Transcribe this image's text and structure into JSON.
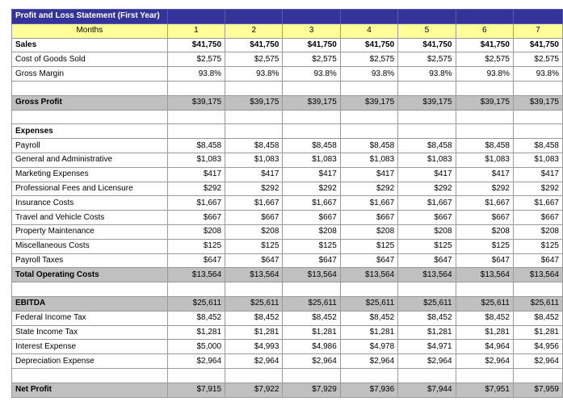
{
  "title": "Profit and Loss Statement (First Year)",
  "months_label": "Months",
  "months": [
    "1",
    "2",
    "3",
    "4",
    "5",
    "6",
    "7"
  ],
  "rows": [
    {
      "label": "Sales",
      "values": [
        "$41,750",
        "$41,750",
        "$41,750",
        "$41,750",
        "$41,750",
        "$41,750",
        "$41,750"
      ],
      "style": "boldall"
    },
    {
      "label": "Cost of Goods Sold",
      "values": [
        "$2,575",
        "$2,575",
        "$2,575",
        "$2,575",
        "$2,575",
        "$2,575",
        "$2,575"
      ],
      "style": ""
    },
    {
      "label": "Gross Margin",
      "values": [
        "93.8%",
        "93.8%",
        "93.8%",
        "93.8%",
        "93.8%",
        "93.8%",
        "93.8%"
      ],
      "style": ""
    },
    {
      "label": "",
      "values": [
        "",
        "",
        "",
        "",
        "",
        "",
        ""
      ],
      "style": "blank"
    },
    {
      "label": "Gross Profit",
      "values": [
        "$39,175",
        "$39,175",
        "$39,175",
        "$39,175",
        "$39,175",
        "$39,175",
        "$39,175"
      ],
      "style": "gray bold"
    },
    {
      "label": "",
      "values": [
        "",
        "",
        "",
        "",
        "",
        "",
        ""
      ],
      "style": "blank"
    },
    {
      "label": "Expenses",
      "values": [
        "",
        "",
        "",
        "",
        "",
        "",
        ""
      ],
      "style": "bold"
    },
    {
      "label": "Payroll",
      "values": [
        "$8,458",
        "$8,458",
        "$8,458",
        "$8,458",
        "$8,458",
        "$8,458",
        "$8,458"
      ],
      "style": ""
    },
    {
      "label": "General and Administrative",
      "values": [
        "$1,083",
        "$1,083",
        "$1,083",
        "$1,083",
        "$1,083",
        "$1,083",
        "$1,083"
      ],
      "style": ""
    },
    {
      "label": "Marketing Expenses",
      "values": [
        "$417",
        "$417",
        "$417",
        "$417",
        "$417",
        "$417",
        "$417"
      ],
      "style": ""
    },
    {
      "label": "Professional Fees and Licensure",
      "values": [
        "$292",
        "$292",
        "$292",
        "$292",
        "$292",
        "$292",
        "$292"
      ],
      "style": ""
    },
    {
      "label": "Insurance Costs",
      "values": [
        "$1,667",
        "$1,667",
        "$1,667",
        "$1,667",
        "$1,667",
        "$1,667",
        "$1,667"
      ],
      "style": ""
    },
    {
      "label": "Travel and Vehicle Costs",
      "values": [
        "$667",
        "$667",
        "$667",
        "$667",
        "$667",
        "$667",
        "$667"
      ],
      "style": ""
    },
    {
      "label": "Property Maintenance",
      "values": [
        "$208",
        "$208",
        "$208",
        "$208",
        "$208",
        "$208",
        "$208"
      ],
      "style": ""
    },
    {
      "label": "Miscellaneous Costs",
      "values": [
        "$125",
        "$125",
        "$125",
        "$125",
        "$125",
        "$125",
        "$125"
      ],
      "style": ""
    },
    {
      "label": "Payroll Taxes",
      "values": [
        "$647",
        "$647",
        "$647",
        "$647",
        "$647",
        "$647",
        "$647"
      ],
      "style": ""
    },
    {
      "label": "Total Operating Costs",
      "values": [
        "$13,564",
        "$13,564",
        "$13,564",
        "$13,564",
        "$13,564",
        "$13,564",
        "$13,564"
      ],
      "style": "gray bold"
    },
    {
      "label": "",
      "values": [
        "",
        "",
        "",
        "",
        "",
        "",
        ""
      ],
      "style": "blank"
    },
    {
      "label": "EBITDA",
      "values": [
        "$25,611",
        "$25,611",
        "$25,611",
        "$25,611",
        "$25,611",
        "$25,611",
        "$25,611"
      ],
      "style": "gray bold"
    },
    {
      "label": "Federal Income Tax",
      "values": [
        "$8,452",
        "$8,452",
        "$8,452",
        "$8,452",
        "$8,452",
        "$8,452",
        "$8,452"
      ],
      "style": ""
    },
    {
      "label": "State Income Tax",
      "values": [
        "$1,281",
        "$1,281",
        "$1,281",
        "$1,281",
        "$1,281",
        "$1,281",
        "$1,281"
      ],
      "style": ""
    },
    {
      "label": "Interest Expense",
      "values": [
        "$5,000",
        "$4,993",
        "$4,986",
        "$4,978",
        "$4,971",
        "$4,964",
        "$4,956"
      ],
      "style": ""
    },
    {
      "label": "Depreciation Expense",
      "values": [
        "$2,964",
        "$2,964",
        "$2,964",
        "$2,964",
        "$2,964",
        "$2,964",
        "$2,964"
      ],
      "style": ""
    },
    {
      "label": "",
      "values": [
        "",
        "",
        "",
        "",
        "",
        "",
        ""
      ],
      "style": "blank"
    },
    {
      "label": "Net Profit",
      "values": [
        "$7,915",
        "$7,922",
        "$7,929",
        "$7,936",
        "$7,944",
        "$7,951",
        "$7,959"
      ],
      "style": "gray bold"
    }
  ]
}
